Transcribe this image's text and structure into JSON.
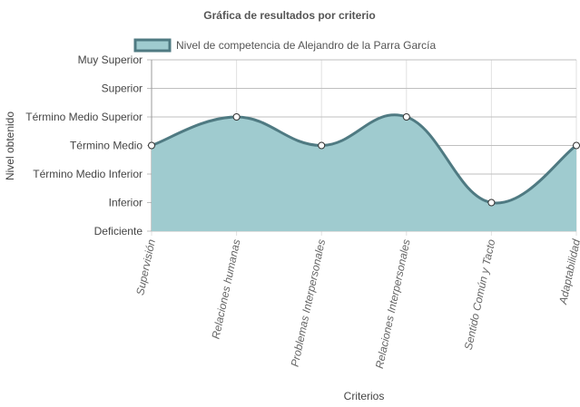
{
  "chart_data": {
    "type": "area",
    "title": "Gráfica de resultados por criterio",
    "xlabel": "Criterios",
    "ylabel": "Nivel obtenido",
    "y_levels": [
      "Deficiente",
      "Inferior",
      "Término Medio Inferior",
      "Término Medio",
      "Término Medio Superior",
      "Superior",
      "Muy Superior"
    ],
    "ylim": [
      0,
      6
    ],
    "categories": [
      "Supervisión",
      "Relaciones humanas",
      "Problemas Interpersonales",
      "Relaciones Interpersonales",
      "Sentido Común y Tacto",
      "Adaptabilidad"
    ],
    "series": [
      {
        "name": "Nivel de competencia de Alejandro de la Parra García",
        "values": [
          3,
          4,
          3,
          4,
          1,
          3
        ],
        "fill": "#9fcbcf",
        "stroke": "#4f7a82"
      }
    ],
    "grid": true,
    "legend_position": "top"
  }
}
